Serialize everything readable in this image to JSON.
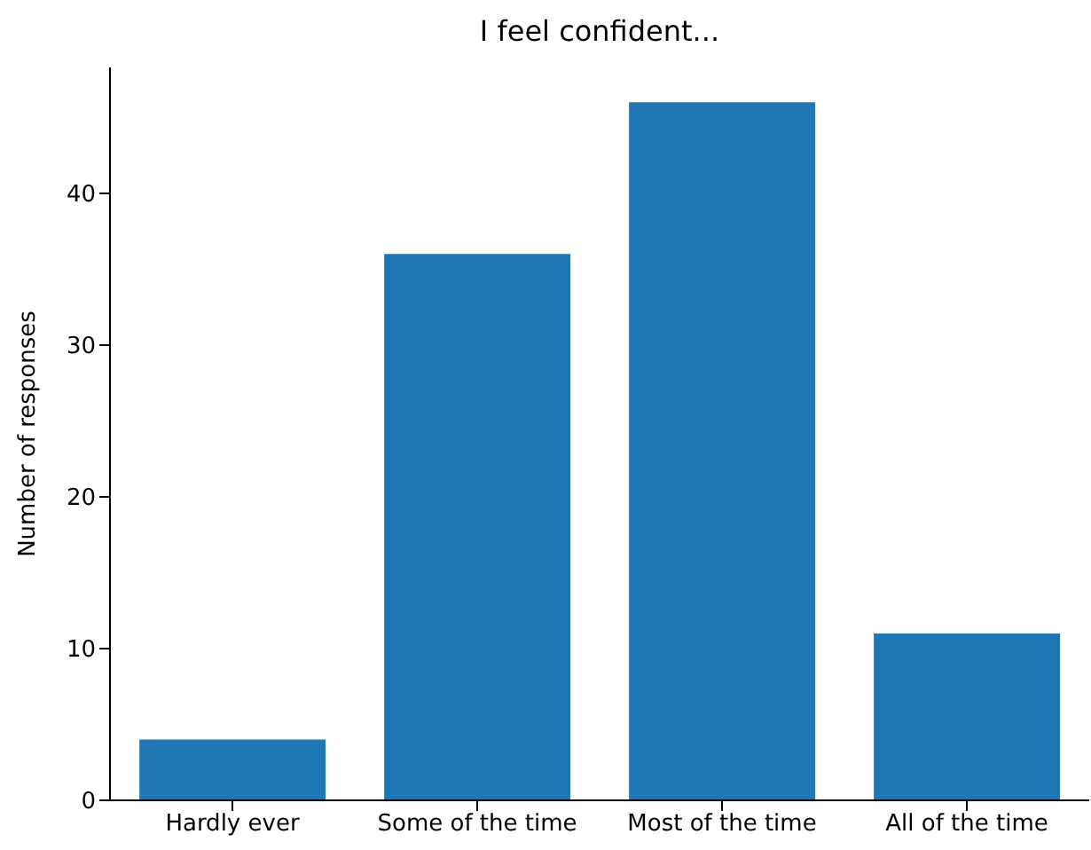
{
  "chart_data": {
    "type": "bar",
    "title": "I feel confident...",
    "ylabel": "Number of responses",
    "categories": [
      "Hardly ever",
      "Some of the time",
      "Most of the time",
      "All of the time"
    ],
    "values": [
      4,
      36,
      46,
      11
    ],
    "color": "#1f77b4",
    "ylim": [
      0,
      48.3
    ],
    "yticks": [
      0,
      10,
      20,
      30,
      40
    ],
    "grid": false
  }
}
